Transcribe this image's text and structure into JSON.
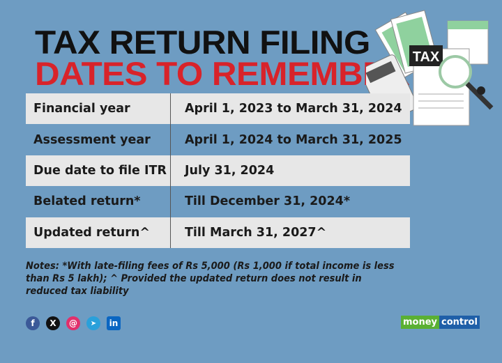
{
  "title": {
    "line1": "TAX RETURN FILING",
    "line2": "DATES TO REMEMBER"
  },
  "illustration": {
    "label": "TAX"
  },
  "table": [
    {
      "label": "Financial year",
      "value": "April 1, 2023 to March 31, 2024"
    },
    {
      "label": "Assessment year",
      "value": "April 1, 2024 to March 31, 2025"
    },
    {
      "label": "Due date to file ITR",
      "value": "July 31, 2024"
    },
    {
      "label": "Belated return*",
      "value": "Till December 31, 2024*"
    },
    {
      "label": "Updated return^",
      "value": "Till March 31, 2027^"
    }
  ],
  "notes": "Notes: *With late-filing fees of Rs 5,000 (Rs 1,000 if total income is less than Rs 5 lakh); ^ Provided the updated return does not result in reduced tax liability",
  "social": {
    "facebook": "f",
    "x": "X",
    "instagram": "@",
    "telegram": "➤",
    "linkedin": "in"
  },
  "logo": {
    "part1": "money",
    "part2": "control"
  },
  "colors": {
    "background": "#6e9cc2",
    "title_red": "#d8232a",
    "row_light": "#e7e7e7"
  }
}
